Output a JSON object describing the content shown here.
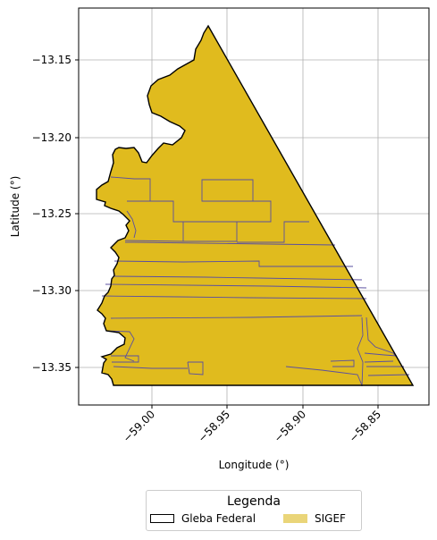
{
  "map": {
    "xlabel": "Longitude (°)",
    "ylabel": "Latitude (°)",
    "xticks": [
      "−59.00",
      "−58.95",
      "−58.90",
      "−58.85"
    ],
    "yticks": [
      "−13.15",
      "−13.20",
      "−13.25",
      "−13.30",
      "−13.35"
    ],
    "xlim": [
      -59.047,
      -58.817
    ],
    "ylim": [
      -13.375,
      -13.118
    ],
    "grid": true,
    "colors": {
      "parcel_fill": "#e0bb1e",
      "parcel_edge": "#5a4fa0",
      "gleba_edge": "#000000",
      "sigef_legend": "#ead579"
    }
  },
  "legend": {
    "title": "Legenda",
    "items": [
      {
        "label": "Gleba Federal",
        "style": "outline"
      },
      {
        "label": "SIGEF",
        "style": "fill"
      }
    ]
  }
}
